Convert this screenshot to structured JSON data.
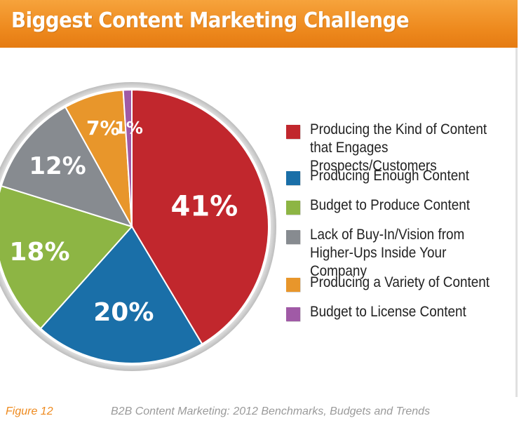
{
  "header": {
    "title": "Biggest Content Marketing Challenge"
  },
  "chart_data": {
    "type": "pie",
    "slices": [
      {
        "label": "Producing the Kind of Content\nthat Engages Prospects/Customers",
        "value": 41,
        "display": "41%",
        "color": "#c1272d"
      },
      {
        "label": "Producing Enough Content",
        "value": 20,
        "display": "20%",
        "color": "#1a6fa8"
      },
      {
        "label": "Budget to Produce Content",
        "value": 18,
        "display": "18%",
        "color": "#8db544"
      },
      {
        "label": "Lack of Buy-In/Vision from\nHigher-Ups Inside Your Company",
        "value": 12,
        "display": "12%",
        "color": "#878b90"
      },
      {
        "label": "Producing a Variety of Content",
        "value": 7,
        "display": "7%",
        "color": "#e8962b"
      },
      {
        "label": "Budget to License Content",
        "value": 1,
        "display": "1%",
        "color": "#a05aa6"
      }
    ],
    "legend_position": "right"
  },
  "footer": {
    "figure": "Figure 12",
    "source": "B2B Content Marketing: 2012 Benchmarks, Budgets and Trends"
  }
}
